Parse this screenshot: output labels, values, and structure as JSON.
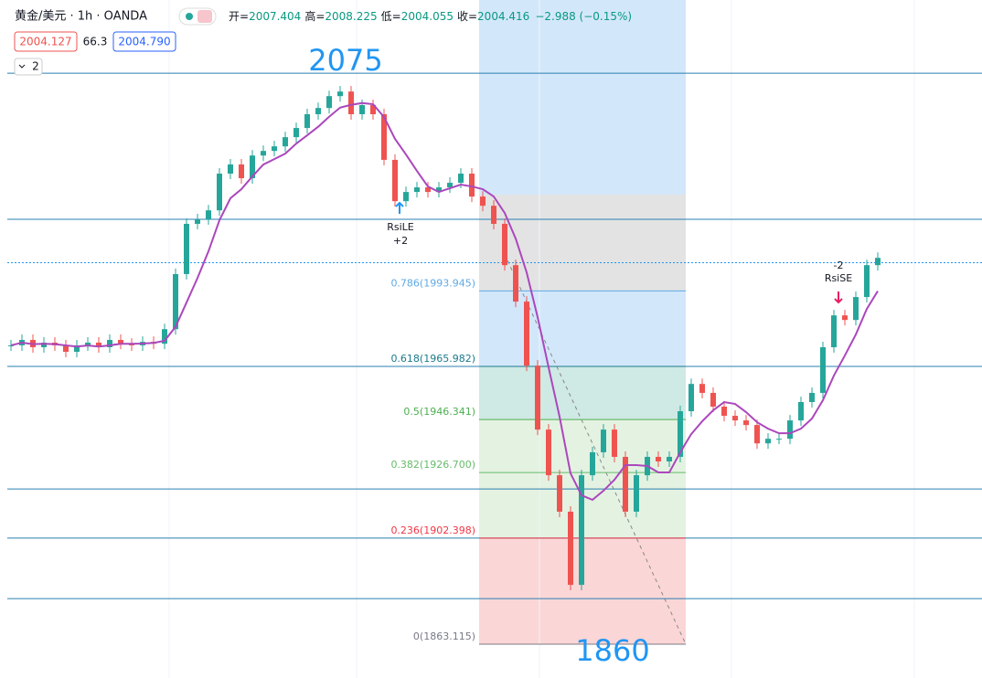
{
  "header": {
    "symbol": "黄金/美元 · 1h · OANDA",
    "ohlc": [
      {
        "label": "开=",
        "value": "2007.404"
      },
      {
        "label": "高=",
        "value": "2008.225"
      },
      {
        "label": "低=",
        "value": "2004.055"
      },
      {
        "label": "收=",
        "value": "2004.416"
      }
    ],
    "change": "−2.988 (−0.15%)",
    "sell_price": "2004.127",
    "spread": "66.3",
    "buy_price": "2004.790",
    "indicator_count": "2"
  },
  "chart": {
    "ylim": [
      1850.6,
      2101.7
    ],
    "closes": [
      1973.8,
      1975.8,
      1973.1,
      1974.8,
      1973.8,
      1971.4,
      1973.8,
      1974.8,
      1973.1,
      1975.8,
      1974.4,
      1973.8,
      1975.1,
      1974.4,
      1979.8,
      2000.2,
      2018.8,
      2020.5,
      2023.8,
      2037.4,
      2040.8,
      2035.7,
      2044.1,
      2045.8,
      2047.5,
      2050.9,
      2054.3,
      2059.4,
      2061.7,
      2066.1,
      2067.8,
      2059.4,
      2062.8,
      2059.4,
      2042.5,
      2027.2,
      2030.6,
      2032.3,
      2030.6,
      2032.3,
      2034.0,
      2037.4,
      2028.9,
      2025.5,
      2018.8,
      2003.5,
      1990.0,
      1966.3,
      1942.6,
      1925.7,
      1912.2,
      1885.1,
      1925.7,
      1934.2,
      1942.6,
      1932.5,
      1912.2,
      1925.7,
      1932.5,
      1930.8,
      1932.5,
      1949.4,
      1959.5,
      1956.2,
      1951.1,
      1947.7,
      1946.0,
      1944.3,
      1937.5,
      1939.2,
      1939.2,
      1946.0,
      1952.8,
      1956.2,
      1973.1,
      1984.9,
      1983.2,
      1991.7,
      2003.5,
      2006.2
    ],
    "current_price": 2004.416,
    "horizontal_lines": [
      2074.6,
      2020.5,
      1965.982,
      1920.6,
      1902.4,
      1880.0
    ],
    "fib_levels": [
      {
        "label": "0.786(1993.945)",
        "price": 1993.945,
        "color": "#5ea9e6"
      },
      {
        "label": "0.618(1965.982)",
        "price": 1965.982,
        "color": "#1b7a8c"
      },
      {
        "label": "0.5(1946.341)",
        "price": 1946.341,
        "color": "#4caf50"
      },
      {
        "label": "0.382(1926.700)",
        "price": 1926.7,
        "color": "#66bb6a"
      },
      {
        "label": "0.236(1902.398)",
        "price": 1902.398,
        "color": "#f23645"
      },
      {
        "label": "0(1863.115)",
        "price": 1863.115,
        "color": "#787b86"
      }
    ],
    "annotations": {
      "high": "2075",
      "low": "1860",
      "long_signal": "RsiLE",
      "long_qty": "+2",
      "short_qty": "-2",
      "short_signal": "RsiSE"
    }
  }
}
